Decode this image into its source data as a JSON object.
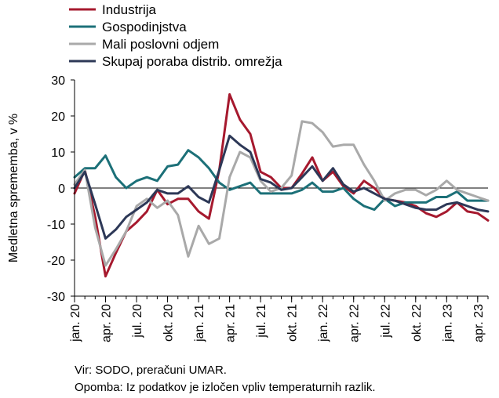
{
  "chart_data": {
    "type": "line",
    "ylabel": "Medletna sprememba, v %",
    "ylim": [
      -30,
      30
    ],
    "yticks": [
      -30,
      -20,
      -10,
      0,
      10,
      20,
      30
    ],
    "x_tick_labels": [
      "jan. 20",
      "apr. 20",
      "jul. 20",
      "okt. 20",
      "jan. 21",
      "apr. 21",
      "jul. 21",
      "okt. 21",
      "jan. 22",
      "apr. 22",
      "jul. 22",
      "okt. 22",
      "jan. 23",
      "apr. 23"
    ],
    "x_tick_interval_months": 3,
    "grid": false,
    "legend_position": "top-left",
    "zero_line": true,
    "series": [
      {
        "name": "Industrija",
        "color": "#a6192e",
        "values": [
          -1.5,
          5,
          -8,
          -24.5,
          -18,
          -12,
          -9.5,
          -6.5,
          -0.5,
          -4.5,
          -3,
          -3,
          -6.5,
          -8.5,
          5,
          26,
          19,
          15,
          4.5,
          3,
          0,
          0,
          4,
          8.5,
          2,
          4.5,
          0.5,
          -1.5,
          2,
          0,
          -3,
          -3.5,
          -4,
          -5,
          -7,
          -8,
          -6.5,
          -4,
          -6.5,
          -7,
          -9
        ]
      },
      {
        "name": "Gospodinjstva",
        "color": "#1c7078",
        "values": [
          3,
          5.5,
          5.5,
          9,
          3,
          0,
          2,
          3,
          2,
          6,
          6.5,
          10.5,
          8.5,
          5.5,
          1.5,
          -0.5,
          0.5,
          1.5,
          -1.5,
          -1.5,
          -1.5,
          -1.5,
          -0.5,
          1.5,
          -1,
          -1,
          0,
          -3,
          -5,
          -6,
          -3,
          -5,
          -4,
          -4,
          -4,
          -2.5,
          -2.5,
          -1,
          -3.5,
          -3.5,
          -3.5
        ]
      },
      {
        "name": "Mali poslovni odjem",
        "color": "#a9a9a9",
        "values": [
          1,
          5,
          -11,
          -21.5,
          -17,
          -12,
          -5,
          -3,
          -5.5,
          -3.5,
          -7.5,
          -19,
          -10.5,
          -15.5,
          -14,
          3,
          10,
          8.5,
          2,
          -1,
          0,
          3.5,
          18.5,
          18,
          15.5,
          11.5,
          12,
          12,
          6.5,
          2,
          -3.5,
          -1.5,
          -0.5,
          -0.5,
          -2,
          -0.5,
          2,
          -0.5,
          -1.5,
          -2.5,
          -3.5
        ]
      },
      {
        "name": "Skupaj poraba distrib. omrežja",
        "color": "#2d3857",
        "values": [
          0,
          4.5,
          -4.5,
          -14,
          -11.5,
          -8,
          -6,
          -4,
          -0.5,
          -1.5,
          -1.5,
          0.5,
          -2.5,
          -4,
          5,
          14.5,
          12,
          10,
          2.5,
          1.5,
          -0.5,
          0,
          3,
          6,
          2,
          5.5,
          1,
          -1,
          0,
          -1.5,
          -3,
          -3.5,
          -4.5,
          -5.5,
          -6,
          -6,
          -4.5,
          -4,
          -5,
          -6,
          -6.5
        ]
      }
    ]
  },
  "notes": {
    "source": "Vir: SODO, preračuni UMAR.",
    "remark": "Opomba: Iz podatkov je izločen vpliv temperaturnih razlik."
  }
}
